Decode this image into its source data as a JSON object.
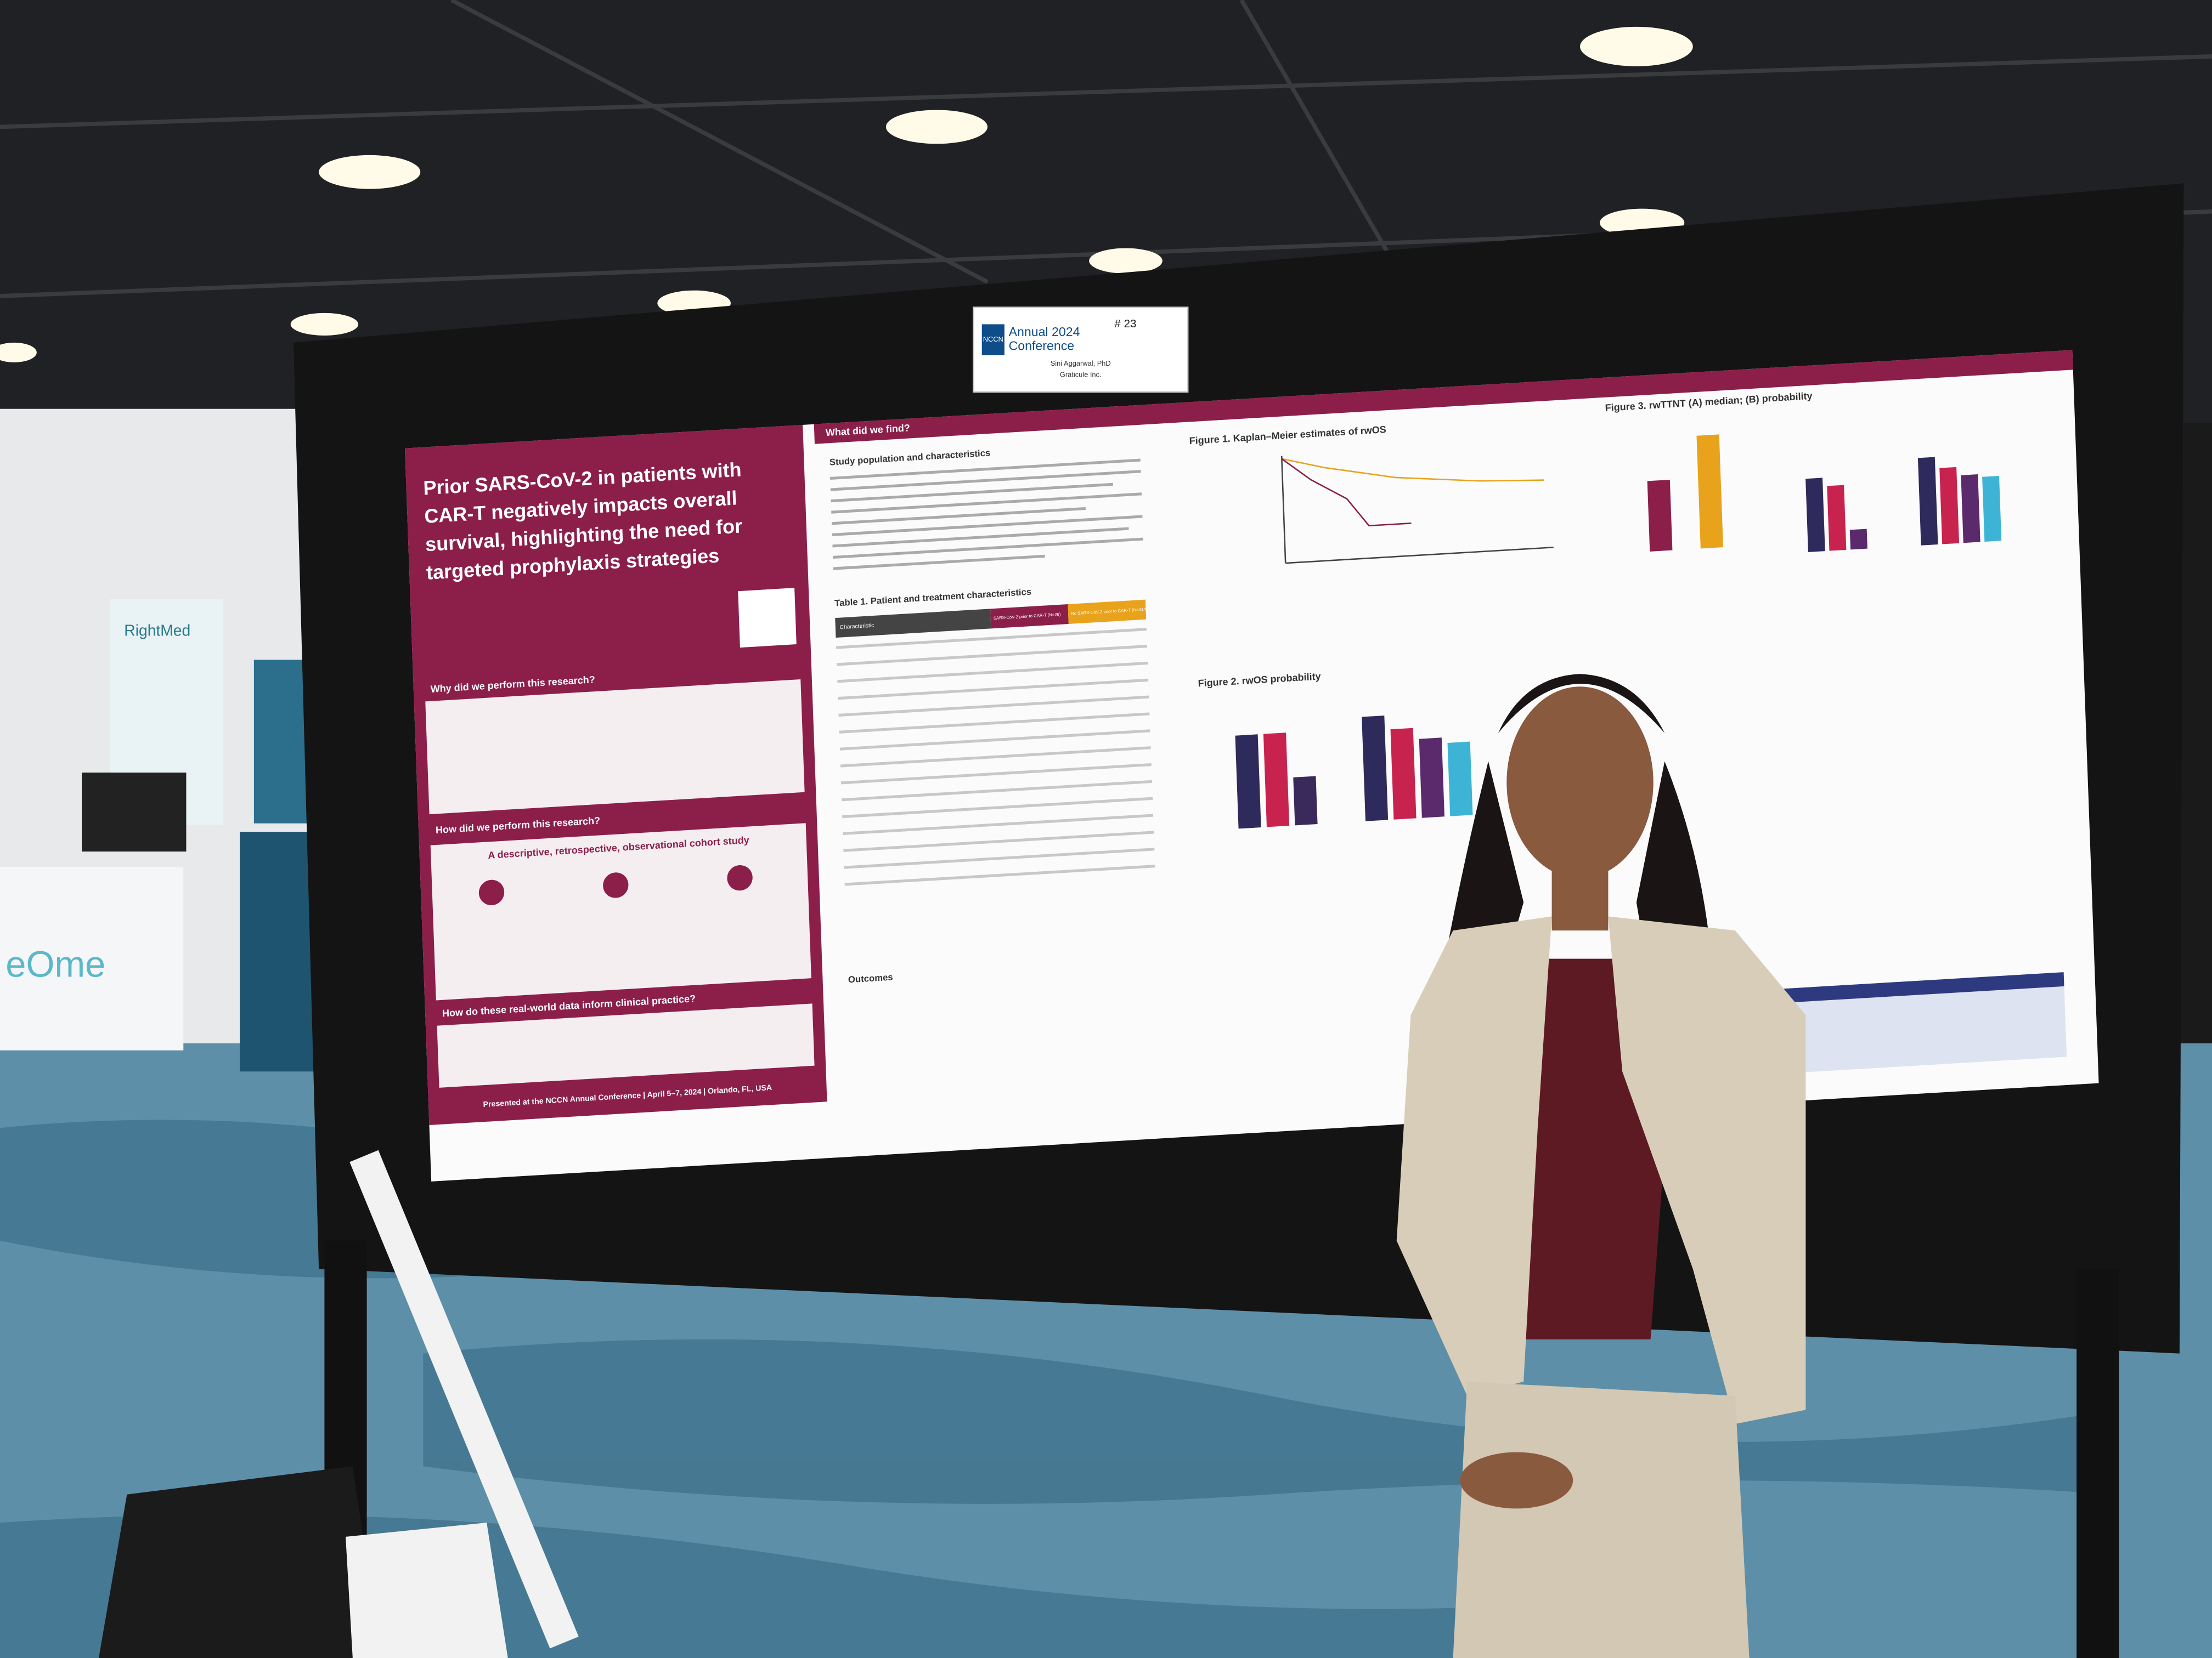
{
  "sign": {
    "brand": "NCCN",
    "event_lines": [
      "Annual 2024",
      "Conference"
    ],
    "board": "# 23",
    "presenter": "Sini Aggarwal, PhD",
    "company": "Graticule Inc."
  },
  "poster": {
    "title_lines": [
      "Prior SARS-CoV-2 in patients with",
      "CAR-T negatively impacts overall",
      "survival, highlighting the need for",
      "targeted prophylaxis strategies"
    ],
    "left_sections": [
      "Why did we perform this research?",
      "How did we perform this research?",
      "How do these real-world data inform clinical practice?"
    ],
    "study_design": "A descriptive, retrospective, observational cohort study",
    "footer": "Presented at the NCCN Annual Conference | April 5–7, 2024 | Orlando, FL, USA",
    "results_header": "What did we find?",
    "subsections": [
      "Study population and characteristics",
      "Table 1. Patient and treatment characteristics",
      "Outcomes"
    ],
    "table_header": [
      "Characteristic",
      "SARS-CoV-2 prior to CAR-T (N=26)",
      "No SARS-CoV-2 prior to CAR-T (N=414)"
    ],
    "figures": [
      "Figure 1. Kaplan–Meier estimates of rwOS",
      "Figure 2. rwOS probability",
      "Figure 3. rwTTNT (A) median; (B) probability"
    ]
  },
  "booth": {
    "left_sign": "RightMed",
    "banner": "eOme"
  }
}
